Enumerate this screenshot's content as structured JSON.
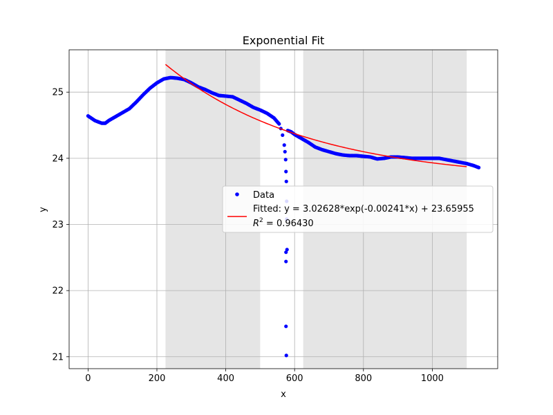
{
  "chart_data": {
    "type": "scatter",
    "title": "Exponential Fit",
    "xlabel": "x",
    "ylabel": "y",
    "xlim": [
      -55,
      1190
    ],
    "ylim": [
      20.82,
      25.64
    ],
    "x_ticks": [
      0,
      200,
      400,
      600,
      800,
      1000
    ],
    "y_ticks": [
      21,
      22,
      23,
      24,
      25
    ],
    "grid": true,
    "legend_position": "center-right",
    "shaded_regions": [
      [
        225,
        500
      ],
      [
        625,
        1100
      ]
    ],
    "colors": {
      "data": "#0000ff",
      "fit": "#ff0000",
      "shade": "#e5e5e5",
      "grid": "#b0b0b0"
    },
    "series": [
      {
        "name": "Data",
        "kind": "scatter",
        "x": [
          0,
          20,
          40,
          50,
          60,
          80,
          100,
          120,
          140,
          160,
          180,
          200,
          220,
          240,
          260,
          280,
          300,
          320,
          340,
          360,
          380,
          400,
          420,
          440,
          460,
          480,
          500,
          520,
          540,
          555,
          560,
          565,
          570,
          572,
          574,
          575,
          576,
          577,
          578,
          580,
          590,
          600,
          620,
          640,
          660,
          680,
          700,
          720,
          740,
          760,
          780,
          800,
          820,
          840,
          860,
          880,
          900,
          920,
          940,
          960,
          980,
          1000,
          1020,
          1040,
          1060,
          1080,
          1100,
          1120,
          1135
        ],
        "y": [
          24.64,
          24.57,
          24.53,
          24.53,
          24.57,
          24.63,
          24.69,
          24.75,
          24.85,
          24.96,
          25.06,
          25.14,
          25.2,
          25.22,
          25.21,
          25.19,
          25.14,
          25.08,
          25.04,
          24.99,
          24.95,
          24.94,
          24.93,
          24.88,
          24.83,
          24.77,
          24.73,
          24.68,
          24.61,
          24.52,
          24.45,
          24.35,
          24.2,
          24.1,
          23.98,
          23.8,
          23.65,
          23.35,
          22.62,
          24.42,
          24.4,
          24.36,
          24.3,
          24.24,
          24.17,
          24.13,
          24.1,
          24.07,
          24.05,
          24.04,
          24.04,
          24.03,
          24.02,
          23.99,
          24.0,
          24.02,
          24.02,
          24.01,
          24.0,
          24.0,
          24.0,
          24.0,
          24.0,
          23.98,
          23.96,
          23.94,
          23.92,
          23.89,
          23.86
        ]
      },
      {
        "name": "Fitted: y = 3.02628*exp(-0.00241*x) + 23.65955",
        "kind": "line",
        "params": {
          "a": 3.02628,
          "b": -0.00241,
          "c": 23.65955
        },
        "x_range": [
          225,
          1100
        ]
      }
    ],
    "legend": [
      {
        "label": "Data",
        "marker": "dot"
      },
      {
        "label": "Fitted: y = 3.02628*exp(-0.00241*x) + 23.65955",
        "marker": "line"
      },
      {
        "label_prefix": "R",
        "label_sup": "2",
        "label_suffix": " = 0.96430",
        "marker": "none"
      }
    ],
    "outliers": {
      "x": [
        575,
        575,
        575,
        576,
        577
      ],
      "y": [
        22.58,
        22.44,
        21.46,
        21.02,
        23.08
      ]
    }
  }
}
